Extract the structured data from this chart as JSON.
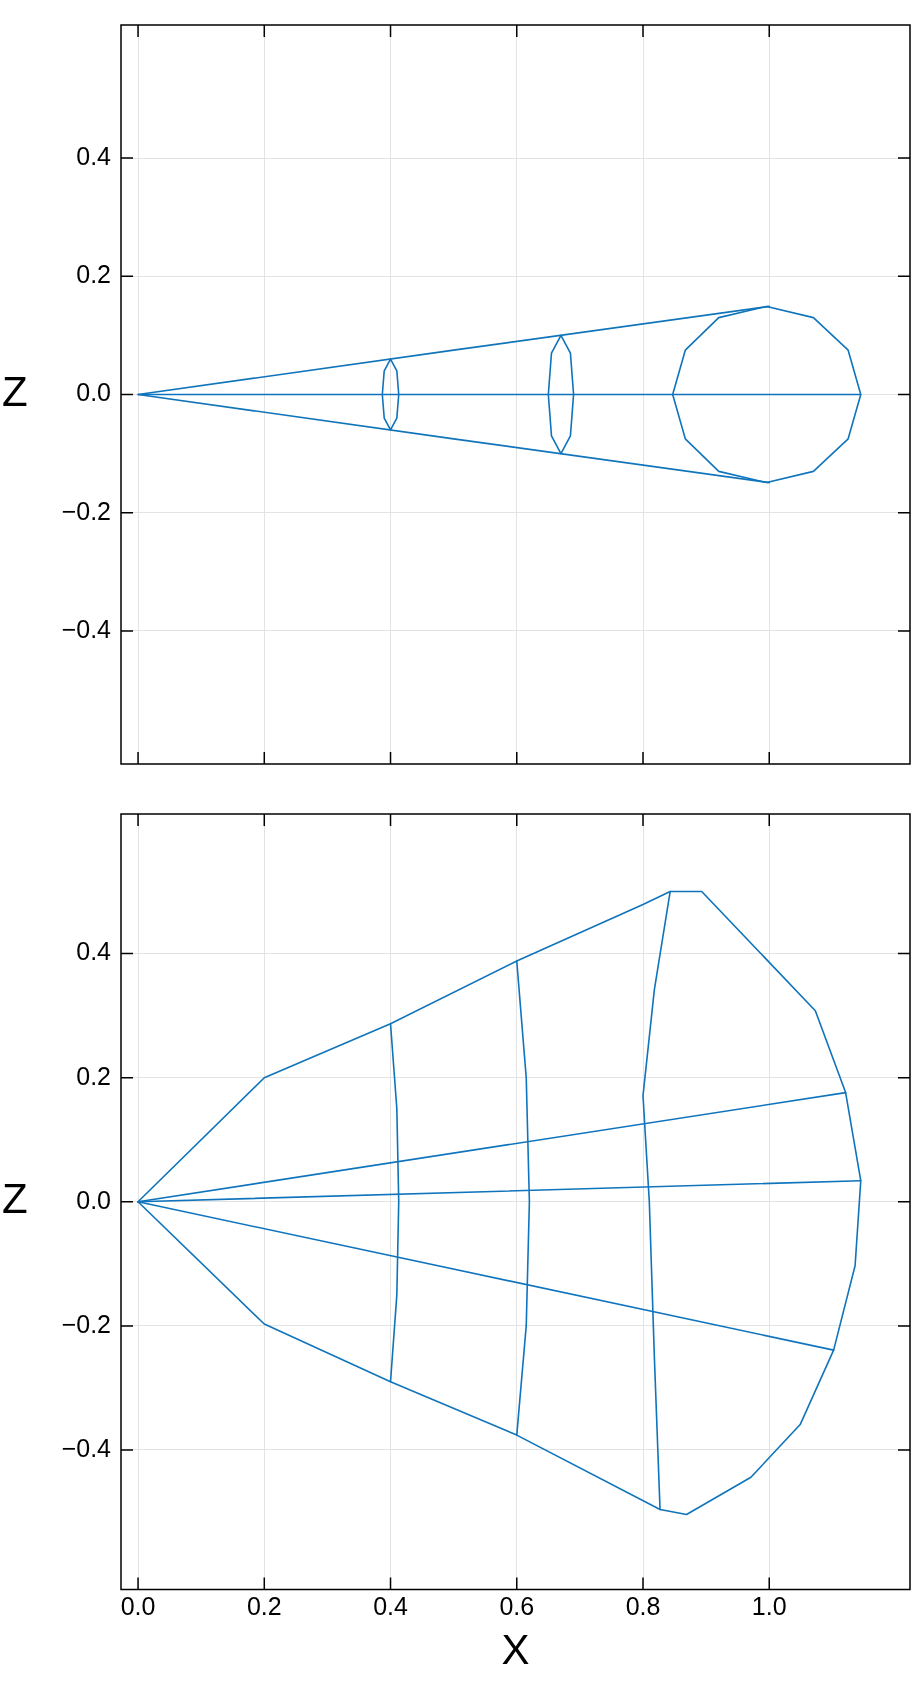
{
  "chart_data": [
    {
      "type": "line",
      "ylabel": "Z",
      "xlim": [
        -0.027,
        1.223
      ],
      "ylim": [
        -0.625,
        0.625
      ],
      "xticks": [
        {
          "value": 0,
          "label": null
        },
        {
          "value": 0.2,
          "label": null
        },
        {
          "value": 0.4,
          "label": null
        },
        {
          "value": 0.6,
          "label": null
        },
        {
          "value": 0.8,
          "label": null
        },
        {
          "value": 1,
          "label": null
        }
      ],
      "yticks": [
        {
          "value": -0.4,
          "label": "−0.4"
        },
        {
          "value": -0.2,
          "label": "−0.2"
        },
        {
          "value": 0,
          "label": "0.0"
        },
        {
          "value": 0.2,
          "label": "0.2"
        },
        {
          "value": 0.4,
          "label": "0.4"
        }
      ],
      "tick_labels": "y",
      "grid": true,
      "legend": false,
      "marker": "none",
      "line_style": "solid",
      "series": [
        {
          "color": "#0f74ba",
          "x": [
            0,
            0.5,
            1.0,
            null,
            0,
            0.5,
            1.0
          ],
          "values": [
            0,
            0.075,
            0.149,
            null,
            0,
            -0.075,
            -0.149
          ]
        },
        {
          "color": "#0f74bc",
          "x": [
            0.847,
            0.867,
            0.92,
            0.996,
            1.07,
            1.125,
            1.145,
            null,
            0.847,
            0.867,
            0.92,
            0.996,
            1.07,
            1.125,
            1.145
          ],
          "values": [
            0,
            0.075,
            0.13,
            0.149,
            0.13,
            0.075,
            0,
            null,
            0,
            -0.075,
            -0.13,
            -0.149,
            -0.13,
            -0.075,
            0
          ]
        },
        {
          "color": "#0f74bd",
          "x": [
            0.65,
            0.655,
            0.67,
            0.685,
            0.69,
            null,
            0.65,
            0.655,
            0.67,
            0.685,
            0.69
          ],
          "values": [
            0,
            0.07,
            0.1,
            0.07,
            0,
            null,
            0,
            -0.07,
            -0.1,
            -0.07,
            0
          ]
        },
        {
          "color": "#0f74be",
          "x": [
            0.387,
            0.39,
            0.4,
            0.41,
            0.413,
            null,
            0.387,
            0.39,
            0.4,
            0.41,
            0.413
          ],
          "values": [
            0,
            0.04,
            0.06,
            0.04,
            0,
            null,
            0,
            -0.04,
            -0.06,
            -0.04,
            0
          ]
        },
        {
          "color": "#0f74bf",
          "x": [
            0,
            1.145
          ],
          "values": [
            0,
            0
          ]
        }
      ]
    },
    {
      "type": "line",
      "xlabel": "X",
      "ylabel": "Z",
      "xlim": [
        -0.027,
        1.223
      ],
      "ylim": [
        -0.625,
        0.625
      ],
      "xticks": [
        {
          "value": 0,
          "label": "0.0"
        },
        {
          "value": 0.2,
          "label": "0.2"
        },
        {
          "value": 0.4,
          "label": "0.4"
        },
        {
          "value": 0.6,
          "label": "0.6"
        },
        {
          "value": 0.8,
          "label": "0.8"
        },
        {
          "value": 1,
          "label": "1.0"
        }
      ],
      "yticks": [
        {
          "value": -0.4,
          "label": "−0.4"
        },
        {
          "value": -0.2,
          "label": "−0.2"
        },
        {
          "value": 0,
          "label": "0.0"
        },
        {
          "value": 0.2,
          "label": "0.2"
        },
        {
          "value": 0.4,
          "label": "0.4"
        }
      ],
      "grid": true,
      "legend": false,
      "marker": "none",
      "line_style": "solid",
      "series": [
        {
          "color": "#0f74ba",
          "x": [
            0,
            0.2,
            0.4,
            0.6,
            0.8,
            0.843,
            0.893,
            1.073,
            1.121,
            1.145,
            null,
            0,
            0.2,
            0.4,
            0.6,
            0.827,
            0.869,
            0.971,
            1.049,
            1.102,
            1.136,
            1.145
          ],
          "values": [
            0,
            0.2,
            0.287,
            0.388,
            0.479,
            0.5,
            0.5,
            0.308,
            0.176,
            0.034,
            null,
            0,
            -0.197,
            -0.29,
            -0.376,
            -0.496,
            -0.504,
            -0.444,
            -0.359,
            -0.239,
            -0.103,
            0.034
          ]
        },
        {
          "color": "#0f74bb",
          "x": [
            0.8,
            0.818,
            0.843,
            null,
            0.8,
            0.81,
            0.818,
            0.827
          ],
          "values": [
            0.171,
            0.342,
            0.5,
            null,
            0.171,
            0,
            -0.25,
            -0.496
          ]
        },
        {
          "color": "#0f74bc",
          "x": [
            0,
            1.145
          ],
          "values": [
            0,
            0.034
          ]
        },
        {
          "color": "#0f74bd",
          "x": [
            0,
            1.121
          ],
          "values": [
            0,
            0.176
          ]
        },
        {
          "color": "#0f74be",
          "x": [
            0,
            1.102
          ],
          "values": [
            0,
            -0.239
          ]
        },
        {
          "color": "#0f74bf",
          "x": [
            0.6,
            0.615,
            0.62,
            null,
            0.6,
            0.615,
            0.62
          ],
          "values": [
            0.388,
            0.2,
            0,
            null,
            -0.376,
            -0.2,
            0
          ]
        },
        {
          "color": "#0e74ba",
          "x": [
            0.4,
            0.41,
            0.413,
            null,
            0.4,
            0.41,
            0.413
          ],
          "values": [
            0.287,
            0.15,
            0,
            null,
            -0.29,
            -0.15,
            0
          ]
        }
      ]
    }
  ]
}
